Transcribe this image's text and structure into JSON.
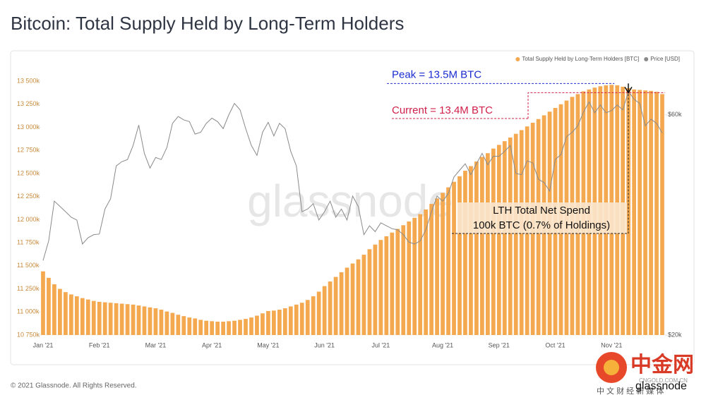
{
  "chart_data": {
    "type": "bar",
    "title": "Bitcoin: Total Supply Held by Long-Term Holders",
    "footer": "© 2021 Glassnode. All Rights Reserved.",
    "watermark": "glassnode",
    "logo": {
      "name": "中金网",
      "site": "CNGOLD.COM.CN",
      "tagline": "中 文 财 经 新 媒 体",
      "brand": "glassnode"
    },
    "annotations": {
      "peak": "Peak = 13.5M BTC",
      "current": "Current = 13.4M BTC",
      "spend_title": "LTH Total Net Spend",
      "spend_value": "100k BTC (0.7% of Holdings)"
    },
    "categories": [
      "Jan '21",
      null,
      null,
      null,
      null,
      null,
      null,
      null,
      null,
      null,
      "Feb '21",
      null,
      null,
      null,
      null,
      null,
      null,
      null,
      null,
      null,
      "Mar '21",
      null,
      null,
      null,
      null,
      null,
      null,
      null,
      null,
      null,
      "Apr '21",
      null,
      null,
      null,
      null,
      null,
      null,
      null,
      null,
      null,
      "May '21",
      null,
      null,
      null,
      null,
      null,
      null,
      null,
      null,
      null,
      "Jun '21",
      null,
      null,
      null,
      null,
      null,
      null,
      null,
      null,
      null,
      "Jul '21",
      null,
      null,
      null,
      null,
      null,
      null,
      null,
      null,
      null,
      null,
      "Aug '21",
      null,
      null,
      null,
      null,
      null,
      null,
      null,
      null,
      null,
      "Sep '21",
      null,
      null,
      null,
      null,
      null,
      null,
      null,
      null,
      null,
      "Oct '21",
      null,
      null,
      null,
      null,
      null,
      null,
      null,
      null,
      null,
      "Nov '21",
      null,
      null,
      null,
      null,
      null,
      null,
      null,
      null,
      null
    ],
    "series": [
      {
        "name": "Total Supply Held by Long-Term Holders [BTC]",
        "color": "#f4a950",
        "values": [
          11440000,
          11370000,
          11300000,
          11250000,
          11215000,
          11190000,
          11170000,
          11150000,
          11135000,
          11120000,
          11110000,
          11105000,
          11100000,
          11095000,
          11090000,
          11085000,
          11080000,
          11070000,
          11060000,
          11050000,
          11040000,
          11025000,
          11005000,
          10990000,
          10970000,
          10955000,
          10940000,
          10930000,
          10915000,
          10905000,
          10900000,
          10895000,
          10895000,
          10900000,
          10905000,
          10915000,
          10925000,
          10940000,
          10960000,
          10985000,
          11010000,
          11015000,
          11025000,
          11040000,
          11060000,
          11080000,
          11100000,
          11130000,
          11170000,
          11220000,
          11280000,
          11330000,
          11380000,
          11430000,
          11480000,
          11525000,
          11570000,
          11620000,
          11680000,
          11730000,
          11780000,
          11820000,
          11860000,
          11900000,
          11940000,
          11980000,
          12020000,
          12060000,
          12110000,
          12170000,
          12230000,
          12290000,
          12350000,
          12410000,
          12470000,
          12530000,
          12580000,
          12630000,
          12680000,
          12720000,
          12770000,
          12810000,
          12850000,
          12890000,
          12930000,
          12970000,
          13010000,
          13050000,
          13090000,
          13130000,
          13170000,
          13210000,
          13250000,
          13290000,
          13330000,
          13360000,
          13390000,
          13410000,
          13430000,
          13445000,
          13455000,
          13460000,
          13455000,
          13440000,
          13425000,
          13410000,
          13405000,
          13400000,
          13395000,
          13385000,
          13360000
        ]
      },
      {
        "name": "Price [USD]",
        "color": "#8a8a8a",
        "axis": "y2",
        "values": [
          29000,
          32000,
          39000,
          38000,
          37000,
          36000,
          35500,
          31500,
          32500,
          33000,
          33100,
          37500,
          39500,
          46500,
          47500,
          48000,
          51500,
          57000,
          49500,
          46000,
          48500,
          48000,
          51000,
          57500,
          59500,
          58500,
          58000,
          54500,
          55000,
          57500,
          59000,
          58000,
          56000,
          60000,
          63500,
          61500,
          56000,
          51500,
          49000,
          55000,
          57800,
          54000,
          57500,
          56000,
          50000,
          46500,
          37000,
          37500,
          38500,
          35500,
          37000,
          39000,
          36000,
          37500,
          35500,
          40000,
          38000,
          33000,
          34500,
          33500,
          35000,
          34500,
          34000,
          33800,
          33000,
          31800,
          31500,
          32000,
          33800,
          37000,
          40000,
          39000,
          40500,
          44000,
          45500,
          47000,
          44500,
          47000,
          49500,
          46800,
          48800,
          48800,
          50000,
          51500,
          44800,
          44500,
          47700,
          47200,
          43500,
          42800,
          41000,
          48000,
          49200,
          53800,
          55000,
          56800,
          60800,
          64000,
          60600,
          63000,
          60600,
          61300,
          63000,
          61500,
          67500,
          64800,
          63500,
          56800,
          58700,
          57500,
          54800
        ]
      }
    ],
    "ylim": [
      10750000,
      13600000
    ],
    "yticks": [
      {
        "value": 10750000,
        "label": "10 750k"
      },
      {
        "value": 11000000,
        "label": "11 000k"
      },
      {
        "value": 11250000,
        "label": "11 250k"
      },
      {
        "value": 11500000,
        "label": "11 500k"
      },
      {
        "value": 11750000,
        "label": "11 750k"
      },
      {
        "value": 12000000,
        "label": "12 000k"
      },
      {
        "value": 12250000,
        "label": "12 250k"
      },
      {
        "value": 12500000,
        "label": "12 500k"
      },
      {
        "value": 12750000,
        "label": "12 750k"
      },
      {
        "value": 13000000,
        "label": "13 000k"
      },
      {
        "value": 13250000,
        "label": "13 250k"
      },
      {
        "value": 13500000,
        "label": "13 500k"
      }
    ],
    "y2lim": [
      20000,
      74300
    ],
    "y2ticks": [
      {
        "value": 20000,
        "label": "$20k"
      },
      {
        "value": 60000,
        "label": "$60k"
      }
    ],
    "y2log": true,
    "legend": "top-right"
  }
}
